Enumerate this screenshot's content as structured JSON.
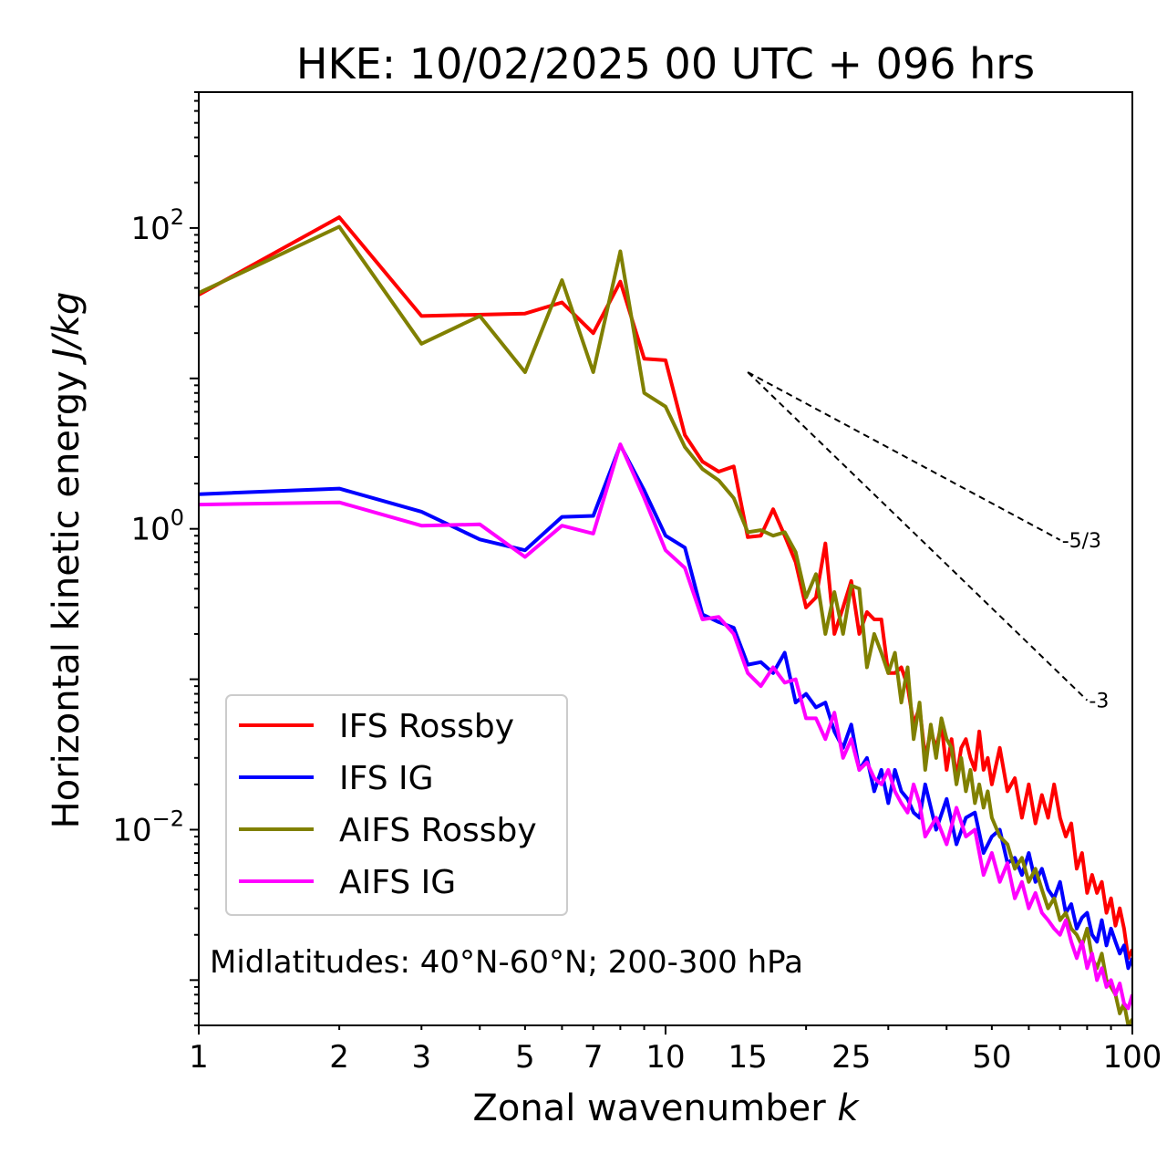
{
  "chart_data": {
    "type": "line",
    "title": "HKE: 10/02/2025 00 UTC + 096 hrs",
    "xlabel": "Zonal wavenumber",
    "xlabel_var": "k",
    "ylabel": "Horizontal kinetic energy",
    "ylabel_unit": "J/kg",
    "xscale": "log",
    "yscale": "log",
    "xlim": [
      1,
      100
    ],
    "ylim": [
      0.0005,
      800
    ],
    "xticks": [
      {
        "value": 1,
        "label": "1"
      },
      {
        "value": 2,
        "label": "2"
      },
      {
        "value": 3,
        "label": "3"
      },
      {
        "value": 5,
        "label": "5"
      },
      {
        "value": 7,
        "label": "7"
      },
      {
        "value": 10,
        "label": "10"
      },
      {
        "value": 15,
        "label": "15"
      },
      {
        "value": 25,
        "label": "25"
      },
      {
        "value": 50,
        "label": "50"
      },
      {
        "value": 100,
        "label": "100"
      }
    ],
    "yticks": [
      {
        "value": 100,
        "base": "10",
        "exp": "2"
      },
      {
        "value": 1,
        "base": "10",
        "exp": "0"
      },
      {
        "value": 0.01,
        "base": "10",
        "exp": "−2"
      }
    ],
    "annotation": "Midlatitudes: 40°N-60°N; 200-300 hPa",
    "legend_position": "lower-left",
    "reference_lines": [
      {
        "label": "-5/3",
        "slope": -1.6667,
        "x0": 15,
        "y0": 11,
        "x1": 70
      },
      {
        "label": "-3",
        "slope": -3,
        "x0": 15,
        "y0": 11,
        "x1": 80
      }
    ],
    "series": [
      {
        "name": "IFS Rossby",
        "color": "#ff0000",
        "points": [
          [
            1,
            36
          ],
          [
            2,
            118
          ],
          [
            3,
            26
          ],
          [
            5,
            27
          ],
          [
            6,
            32
          ],
          [
            7,
            20
          ],
          [
            8,
            44
          ],
          [
            9,
            13.5
          ],
          [
            10,
            13.2
          ],
          [
            11,
            4.2
          ],
          [
            12,
            2.8
          ],
          [
            13,
            2.4
          ],
          [
            14,
            2.6
          ],
          [
            15,
            0.88
          ],
          [
            16,
            0.9
          ],
          [
            17,
            1.35
          ],
          [
            18,
            0.9
          ],
          [
            19,
            0.6
          ],
          [
            20,
            0.3
          ],
          [
            21,
            0.35
          ],
          [
            22,
            0.8
          ],
          [
            23,
            0.2
          ],
          [
            24,
            0.3
          ],
          [
            25,
            0.45
          ],
          [
            26,
            0.2
          ],
          [
            27,
            0.28
          ],
          [
            28,
            0.25
          ],
          [
            29,
            0.25
          ],
          [
            30,
            0.11
          ],
          [
            31,
            0.11
          ],
          [
            32,
            0.12
          ],
          [
            33,
            0.09
          ],
          [
            34,
            0.05
          ],
          [
            35,
            0.065
          ],
          [
            36,
            0.03
          ],
          [
            37,
            0.045
          ],
          [
            38,
            0.035
          ],
          [
            39,
            0.05
          ],
          [
            40,
            0.025
          ],
          [
            41,
            0.04
          ],
          [
            42,
            0.022
          ],
          [
            43,
            0.035
          ],
          [
            44,
            0.04
          ],
          [
            45,
            0.03
          ],
          [
            46,
            0.025
          ],
          [
            47,
            0.045
          ],
          [
            48,
            0.025
          ],
          [
            49,
            0.03
          ],
          [
            50,
            0.02
          ],
          [
            52,
            0.035
          ],
          [
            54,
            0.018
          ],
          [
            56,
            0.022
          ],
          [
            58,
            0.012
          ],
          [
            60,
            0.02
          ],
          [
            62,
            0.011
          ],
          [
            64,
            0.017
          ],
          [
            66,
            0.012
          ],
          [
            68,
            0.02
          ],
          [
            70,
            0.012
          ],
          [
            72,
            0.009
          ],
          [
            74,
            0.011
          ],
          [
            76,
            0.0055
          ],
          [
            78,
            0.007
          ],
          [
            80,
            0.0038
          ],
          [
            82,
            0.005
          ],
          [
            84,
            0.0038
          ],
          [
            86,
            0.0045
          ],
          [
            88,
            0.0028
          ],
          [
            90,
            0.0035
          ],
          [
            92,
            0.0023
          ],
          [
            94,
            0.003
          ],
          [
            96,
            0.0022
          ],
          [
            98,
            0.0014
          ],
          [
            100,
            0.0016
          ]
        ]
      },
      {
        "name": "IFS IG",
        "color": "#0000ff",
        "points": [
          [
            1,
            1.7
          ],
          [
            2,
            1.85
          ],
          [
            3,
            1.3
          ],
          [
            4,
            0.85
          ],
          [
            5,
            0.72
          ],
          [
            6,
            1.2
          ],
          [
            7,
            1.22
          ],
          [
            8,
            3.6
          ],
          [
            9,
            1.8
          ],
          [
            10,
            0.9
          ],
          [
            11,
            0.75
          ],
          [
            12,
            0.27
          ],
          [
            13,
            0.24
          ],
          [
            14,
            0.22
          ],
          [
            15,
            0.125
          ],
          [
            16,
            0.13
          ],
          [
            17,
            0.11
          ],
          [
            18,
            0.15
          ],
          [
            19,
            0.07
          ],
          [
            20,
            0.08
          ],
          [
            21,
            0.065
          ],
          [
            22,
            0.07
          ],
          [
            23,
            0.045
          ],
          [
            24,
            0.035
          ],
          [
            25,
            0.05
          ],
          [
            26,
            0.025
          ],
          [
            27,
            0.03
          ],
          [
            28,
            0.018
          ],
          [
            29,
            0.025
          ],
          [
            30,
            0.015
          ],
          [
            31,
            0.025
          ],
          [
            32,
            0.018
          ],
          [
            33,
            0.016
          ],
          [
            34,
            0.013
          ],
          [
            35,
            0.012
          ],
          [
            36,
            0.02
          ],
          [
            38,
            0.01
          ],
          [
            40,
            0.016
          ],
          [
            42,
            0.008
          ],
          [
            44,
            0.012
          ],
          [
            46,
            0.013
          ],
          [
            48,
            0.007
          ],
          [
            50,
            0.009
          ],
          [
            52,
            0.01
          ],
          [
            54,
            0.006
          ],
          [
            56,
            0.0065
          ],
          [
            58,
            0.005
          ],
          [
            60,
            0.007
          ],
          [
            62,
            0.0045
          ],
          [
            64,
            0.0055
          ],
          [
            66,
            0.004
          ],
          [
            68,
            0.0035
          ],
          [
            70,
            0.0045
          ],
          [
            72,
            0.0028
          ],
          [
            74,
            0.0032
          ],
          [
            76,
            0.0022
          ],
          [
            78,
            0.0026
          ],
          [
            80,
            0.0028
          ],
          [
            82,
            0.002
          ],
          [
            84,
            0.0018
          ],
          [
            86,
            0.0025
          ],
          [
            88,
            0.0017
          ],
          [
            90,
            0.0022
          ],
          [
            92,
            0.0018
          ],
          [
            94,
            0.0015
          ],
          [
            96,
            0.0017
          ],
          [
            98,
            0.0012
          ],
          [
            100,
            0.0014
          ]
        ]
      },
      {
        "name": "AIFS Rossby",
        "color": "#808000",
        "points": [
          [
            1,
            37
          ],
          [
            2,
            102
          ],
          [
            3,
            17
          ],
          [
            4,
            26
          ],
          [
            5,
            11
          ],
          [
            6,
            45
          ],
          [
            7,
            11
          ],
          [
            8,
            70
          ],
          [
            9,
            8
          ],
          [
            10,
            6.5
          ],
          [
            11,
            3.5
          ],
          [
            12,
            2.5
          ],
          [
            13,
            2.1
          ],
          [
            14,
            1.6
          ],
          [
            15,
            0.95
          ],
          [
            16,
            0.98
          ],
          [
            17,
            0.9
          ],
          [
            18,
            0.95
          ],
          [
            19,
            0.7
          ],
          [
            20,
            0.35
          ],
          [
            21,
            0.5
          ],
          [
            22,
            0.2
          ],
          [
            23,
            0.38
          ],
          [
            24,
            0.2
          ],
          [
            25,
            0.42
          ],
          [
            26,
            0.4
          ],
          [
            27,
            0.12
          ],
          [
            28,
            0.2
          ],
          [
            29,
            0.15
          ],
          [
            30,
            0.11
          ],
          [
            31,
            0.15
          ],
          [
            32,
            0.07
          ],
          [
            33,
            0.12
          ],
          [
            34,
            0.04
          ],
          [
            35,
            0.07
          ],
          [
            36,
            0.025
          ],
          [
            37,
            0.05
          ],
          [
            38,
            0.03
          ],
          [
            39,
            0.055
          ],
          [
            40,
            0.04
          ],
          [
            41,
            0.035
          ],
          [
            42,
            0.02
          ],
          [
            43,
            0.03
          ],
          [
            44,
            0.018
          ],
          [
            45,
            0.025
          ],
          [
            46,
            0.015
          ],
          [
            47,
            0.02
          ],
          [
            48,
            0.014
          ],
          [
            49,
            0.018
          ],
          [
            50,
            0.012
          ],
          [
            52,
            0.009
          ],
          [
            54,
            0.008
          ],
          [
            56,
            0.0055
          ],
          [
            58,
            0.0065
          ],
          [
            60,
            0.0045
          ],
          [
            62,
            0.0055
          ],
          [
            64,
            0.004
          ],
          [
            66,
            0.003
          ],
          [
            68,
            0.0035
          ],
          [
            70,
            0.0025
          ],
          [
            72,
            0.0028
          ],
          [
            74,
            0.0022
          ],
          [
            76,
            0.002
          ],
          [
            78,
            0.0017
          ],
          [
            80,
            0.0022
          ],
          [
            82,
            0.0014
          ],
          [
            84,
            0.0012
          ],
          [
            86,
            0.0015
          ],
          [
            88,
            0.001
          ],
          [
            90,
            0.0009
          ],
          [
            92,
            0.0008
          ],
          [
            94,
            0.0006
          ],
          [
            96,
            0.0007
          ],
          [
            98,
            0.0005
          ],
          [
            100,
            0.00055
          ]
        ]
      },
      {
        "name": "AIFS IG",
        "color": "#ff00ff",
        "points": [
          [
            1,
            1.45
          ],
          [
            2,
            1.5
          ],
          [
            3,
            1.05
          ],
          [
            4,
            1.07
          ],
          [
            5,
            0.65
          ],
          [
            6,
            1.05
          ],
          [
            7,
            0.93
          ],
          [
            8,
            3.65
          ],
          [
            9,
            1.6
          ],
          [
            10,
            0.72
          ],
          [
            11,
            0.55
          ],
          [
            12,
            0.25
          ],
          [
            13,
            0.26
          ],
          [
            14,
            0.2
          ],
          [
            15,
            0.11
          ],
          [
            16,
            0.09
          ],
          [
            17,
            0.12
          ],
          [
            18,
            0.095
          ],
          [
            19,
            0.1
          ],
          [
            20,
            0.055
          ],
          [
            21,
            0.055
          ],
          [
            22,
            0.04
          ],
          [
            23,
            0.06
          ],
          [
            24,
            0.03
          ],
          [
            25,
            0.04
          ],
          [
            26,
            0.025
          ],
          [
            27,
            0.028
          ],
          [
            28,
            0.022
          ],
          [
            29,
            0.02
          ],
          [
            30,
            0.025
          ],
          [
            31,
            0.018
          ],
          [
            32,
            0.015
          ],
          [
            33,
            0.013
          ],
          [
            34,
            0.02
          ],
          [
            35,
            0.015
          ],
          [
            36,
            0.009
          ],
          [
            38,
            0.012
          ],
          [
            40,
            0.008
          ],
          [
            42,
            0.014
          ],
          [
            44,
            0.009
          ],
          [
            46,
            0.01
          ],
          [
            48,
            0.005
          ],
          [
            50,
            0.007
          ],
          [
            52,
            0.0045
          ],
          [
            54,
            0.006
          ],
          [
            56,
            0.0035
          ],
          [
            58,
            0.0045
          ],
          [
            60,
            0.003
          ],
          [
            62,
            0.0038
          ],
          [
            64,
            0.0028
          ],
          [
            66,
            0.0025
          ],
          [
            68,
            0.0022
          ],
          [
            70,
            0.002
          ],
          [
            72,
            0.0025
          ],
          [
            74,
            0.0018
          ],
          [
            76,
            0.0014
          ],
          [
            78,
            0.0018
          ],
          [
            80,
            0.0012
          ],
          [
            82,
            0.0015
          ],
          [
            84,
            0.001
          ],
          [
            86,
            0.0012
          ],
          [
            88,
            0.0009
          ],
          [
            90,
            0.001
          ],
          [
            92,
            0.0008
          ],
          [
            94,
            0.00095
          ],
          [
            96,
            0.0007
          ],
          [
            98,
            0.00065
          ],
          [
            100,
            0.0008
          ]
        ]
      }
    ]
  }
}
